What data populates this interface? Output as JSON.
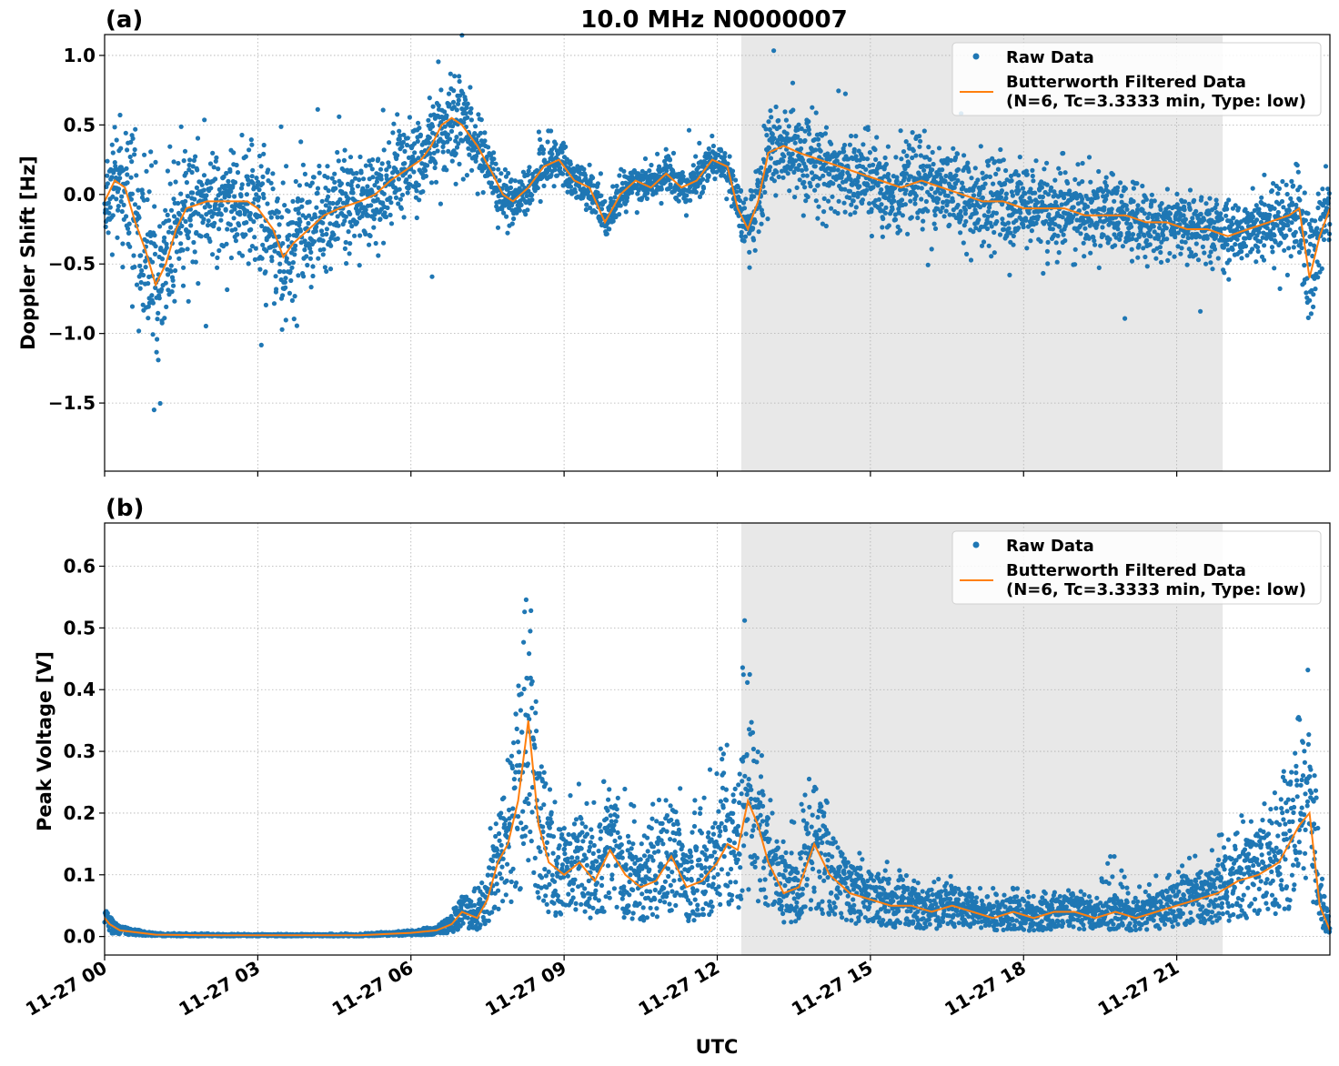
{
  "figure_title": "10.0 MHz N0000007",
  "xlabel": "UTC",
  "colors": {
    "raw": "#1f77b4",
    "filtered": "#ff7f0e",
    "shade": "#e8e8e8",
    "grid": "#b0b0b0"
  },
  "chart_data": [
    {
      "type": "scatter",
      "panel_label": "(a)",
      "title": "10.0 MHz N0000007",
      "ylabel": "Doppler Shift [Hz]",
      "xlabel": "",
      "x_unit": "hours UTC on 11-27",
      "xlim": [
        0,
        24
      ],
      "ylim": [
        -1.99,
        1.15
      ],
      "yticks": [
        1.0,
        0.5,
        0.0,
        -0.5,
        -1.0,
        -1.5
      ],
      "ytick_labels": [
        "1.0",
        "0.5",
        "0.0",
        "−0.5",
        "−1.0",
        "−1.5"
      ],
      "shaded_region": [
        12.47,
        21.9
      ],
      "grid": true,
      "legend_position": "top-right",
      "legend": [
        "Raw Data",
        "Butterworth Filtered Data",
        "(N=6, Tc=3.3333 min, Type: low)"
      ],
      "series": [
        {
          "name": "Butterworth Filtered Data",
          "x": [
            0,
            0.2,
            0.4,
            0.6,
            0.8,
            1.0,
            1.2,
            1.4,
            1.6,
            2.0,
            2.4,
            2.8,
            3.0,
            3.3,
            3.5,
            3.7,
            4.0,
            4.3,
            4.6,
            5.0,
            5.3,
            5.6,
            6.0,
            6.2,
            6.4,
            6.6,
            6.8,
            7.0,
            7.3,
            7.6,
            7.8,
            8.0,
            8.3,
            8.6,
            8.9,
            9.2,
            9.5,
            9.8,
            10.1,
            10.4,
            10.7,
            11.0,
            11.3,
            11.6,
            11.9,
            12.2,
            12.4,
            12.6,
            12.8,
            13.0,
            13.3,
            13.6,
            14.0,
            14.4,
            14.8,
            15.2,
            15.6,
            16.0,
            16.4,
            16.8,
            17.2,
            17.6,
            18.0,
            18.4,
            18.8,
            19.2,
            19.6,
            20.0,
            20.4,
            20.8,
            21.2,
            21.6,
            22.0,
            22.4,
            22.8,
            23.2,
            23.4,
            23.6,
            23.8,
            24.0
          ],
          "y": [
            -0.05,
            0.1,
            0.05,
            -0.2,
            -0.4,
            -0.65,
            -0.5,
            -0.25,
            -0.1,
            -0.05,
            -0.05,
            -0.05,
            -0.1,
            -0.25,
            -0.45,
            -0.35,
            -0.25,
            -0.15,
            -0.1,
            -0.05,
            0.0,
            0.1,
            0.2,
            0.25,
            0.35,
            0.5,
            0.55,
            0.5,
            0.35,
            0.15,
            0.0,
            -0.05,
            0.05,
            0.2,
            0.25,
            0.1,
            0.05,
            -0.2,
            0.0,
            0.1,
            0.05,
            0.15,
            0.05,
            0.1,
            0.25,
            0.2,
            -0.1,
            -0.25,
            -0.05,
            0.3,
            0.35,
            0.3,
            0.25,
            0.2,
            0.15,
            0.1,
            0.05,
            0.1,
            0.05,
            0.0,
            -0.05,
            -0.05,
            -0.1,
            -0.1,
            -0.1,
            -0.15,
            -0.15,
            -0.15,
            -0.2,
            -0.2,
            -0.25,
            -0.25,
            -0.3,
            -0.25,
            -0.2,
            -0.15,
            -0.1,
            -0.6,
            -0.3,
            -0.1
          ]
        },
        {
          "name": "Raw Data",
          "x": [
            0,
            0.2,
            0.4,
            0.6,
            0.8,
            1.0,
            1.2,
            1.4,
            1.6,
            2.0,
            2.4,
            2.8,
            3.0,
            3.3,
            3.5,
            3.7,
            4.0,
            4.3,
            4.6,
            5.0,
            5.3,
            5.6,
            6.0,
            6.2,
            6.4,
            6.6,
            6.8,
            7.0,
            7.3,
            7.6,
            7.8,
            8.0,
            8.3,
            8.6,
            8.9,
            9.2,
            9.5,
            9.8,
            10.1,
            10.4,
            10.7,
            11.0,
            11.3,
            11.6,
            11.9,
            12.2,
            12.4,
            12.6,
            12.8,
            13.0,
            13.3,
            13.6,
            14.0,
            14.4,
            14.8,
            15.2,
            15.6,
            16.0,
            16.4,
            16.8,
            17.2,
            17.6,
            18.0,
            18.4,
            18.8,
            19.2,
            19.6,
            20.0,
            20.4,
            20.8,
            21.2,
            21.6,
            22.0,
            22.4,
            22.8,
            23.2,
            23.4,
            23.6,
            23.8,
            24.0
          ],
          "spread": [
            0.3,
            0.35,
            0.4,
            0.5,
            0.6,
            0.6,
            0.5,
            0.45,
            0.4,
            0.35,
            0.35,
            0.35,
            0.4,
            0.5,
            0.5,
            0.45,
            0.4,
            0.35,
            0.35,
            0.3,
            0.3,
            0.3,
            0.3,
            0.3,
            0.3,
            0.3,
            0.3,
            0.3,
            0.25,
            0.2,
            0.15,
            0.15,
            0.15,
            0.15,
            0.15,
            0.15,
            0.15,
            0.15,
            0.12,
            0.12,
            0.12,
            0.12,
            0.12,
            0.12,
            0.12,
            0.12,
            0.15,
            0.2,
            0.3,
            0.3,
            0.3,
            0.3,
            0.3,
            0.28,
            0.28,
            0.28,
            0.28,
            0.3,
            0.3,
            0.3,
            0.3,
            0.28,
            0.28,
            0.28,
            0.25,
            0.25,
            0.25,
            0.25,
            0.22,
            0.2,
            0.2,
            0.2,
            0.2,
            0.2,
            0.2,
            0.25,
            0.3,
            0.4,
            0.3,
            0.25
          ]
        }
      ]
    },
    {
      "type": "scatter",
      "panel_label": "(b)",
      "title": "",
      "ylabel": "Peak Voltage [V]",
      "xlabel": "UTC",
      "x_unit": "hours UTC on 11-27",
      "xlim": [
        0,
        24
      ],
      "ylim": [
        -0.03,
        0.67
      ],
      "yticks": [
        0.0,
        0.1,
        0.2,
        0.3,
        0.4,
        0.5,
        0.6
      ],
      "ytick_labels": [
        "0.0",
        "0.1",
        "0.2",
        "0.3",
        "0.4",
        "0.5",
        "0.6"
      ],
      "xtick_values": [
        0,
        3,
        6,
        9,
        12,
        15,
        18,
        21
      ],
      "xtick_labels": [
        "11-27 00",
        "11-27 03",
        "11-27 06",
        "11-27 09",
        "11-27 12",
        "11-27 15",
        "11-27 18",
        "11-27 21"
      ],
      "shaded_region": [
        12.47,
        21.9
      ],
      "grid": true,
      "legend_position": "top-right",
      "legend": [
        "Raw Data",
        "Butterworth Filtered Data",
        "(N=6, Tc=3.3333 min, Type: low)"
      ],
      "series": [
        {
          "name": "Butterworth Filtered Data",
          "x": [
            0,
            0.1,
            0.3,
            1,
            2,
            3,
            4,
            5,
            6,
            6.5,
            6.8,
            7.0,
            7.3,
            7.5,
            7.7,
            7.9,
            8.1,
            8.3,
            8.5,
            8.7,
            9.0,
            9.3,
            9.6,
            9.9,
            10.2,
            10.5,
            10.8,
            11.1,
            11.4,
            11.7,
            12.0,
            12.2,
            12.4,
            12.6,
            12.8,
            13.0,
            13.3,
            13.6,
            13.9,
            14.2,
            14.6,
            15.0,
            15.4,
            15.8,
            16.2,
            16.6,
            17.0,
            17.4,
            17.8,
            18.2,
            18.6,
            19.0,
            19.4,
            19.8,
            20.2,
            20.6,
            21.0,
            21.4,
            21.8,
            22.2,
            22.6,
            23.0,
            23.2,
            23.4,
            23.6,
            23.8,
            24.0
          ],
          "y": [
            0.03,
            0.02,
            0.01,
            0.003,
            0.002,
            0.002,
            0.002,
            0.002,
            0.006,
            0.01,
            0.02,
            0.04,
            0.03,
            0.06,
            0.12,
            0.15,
            0.22,
            0.35,
            0.18,
            0.12,
            0.1,
            0.12,
            0.09,
            0.14,
            0.1,
            0.08,
            0.09,
            0.13,
            0.08,
            0.09,
            0.12,
            0.15,
            0.14,
            0.22,
            0.18,
            0.12,
            0.07,
            0.08,
            0.15,
            0.1,
            0.07,
            0.06,
            0.05,
            0.05,
            0.04,
            0.05,
            0.04,
            0.03,
            0.04,
            0.03,
            0.04,
            0.04,
            0.03,
            0.04,
            0.03,
            0.04,
            0.05,
            0.06,
            0.07,
            0.09,
            0.1,
            0.12,
            0.15,
            0.18,
            0.2,
            0.05,
            0.01
          ]
        },
        {
          "name": "Raw Data",
          "x": [
            0,
            0.1,
            0.3,
            1,
            2,
            3,
            4,
            5,
            6,
            6.5,
            6.8,
            7.0,
            7.3,
            7.5,
            7.7,
            7.9,
            8.1,
            8.3,
            8.5,
            8.7,
            9.0,
            9.3,
            9.6,
            9.9,
            10.2,
            10.5,
            10.8,
            11.1,
            11.4,
            11.7,
            12.0,
            12.2,
            12.4,
            12.6,
            12.8,
            13.0,
            13.3,
            13.6,
            13.9,
            14.2,
            14.6,
            15.0,
            15.4,
            15.8,
            16.2,
            16.6,
            17.0,
            17.4,
            17.8,
            18.2,
            18.6,
            19.0,
            19.4,
            19.8,
            20.2,
            20.6,
            21.0,
            21.4,
            21.8,
            22.2,
            22.6,
            23.0,
            23.2,
            23.4,
            23.6,
            23.8,
            24.0
          ],
          "upper": [
            0.06,
            0.03,
            0.015,
            0.006,
            0.005,
            0.004,
            0.004,
            0.005,
            0.01,
            0.015,
            0.04,
            0.07,
            0.08,
            0.2,
            0.25,
            0.35,
            0.4,
            0.62,
            0.3,
            0.25,
            0.22,
            0.28,
            0.22,
            0.3,
            0.25,
            0.2,
            0.25,
            0.3,
            0.22,
            0.24,
            0.3,
            0.35,
            0.4,
            0.6,
            0.35,
            0.25,
            0.18,
            0.2,
            0.32,
            0.2,
            0.16,
            0.14,
            0.12,
            0.1,
            0.09,
            0.1,
            0.08,
            0.08,
            0.08,
            0.07,
            0.08,
            0.08,
            0.07,
            0.15,
            0.08,
            0.1,
            0.12,
            0.15,
            0.17,
            0.2,
            0.22,
            0.25,
            0.3,
            0.42,
            0.45,
            0.12,
            0.03
          ]
        }
      ]
    }
  ]
}
